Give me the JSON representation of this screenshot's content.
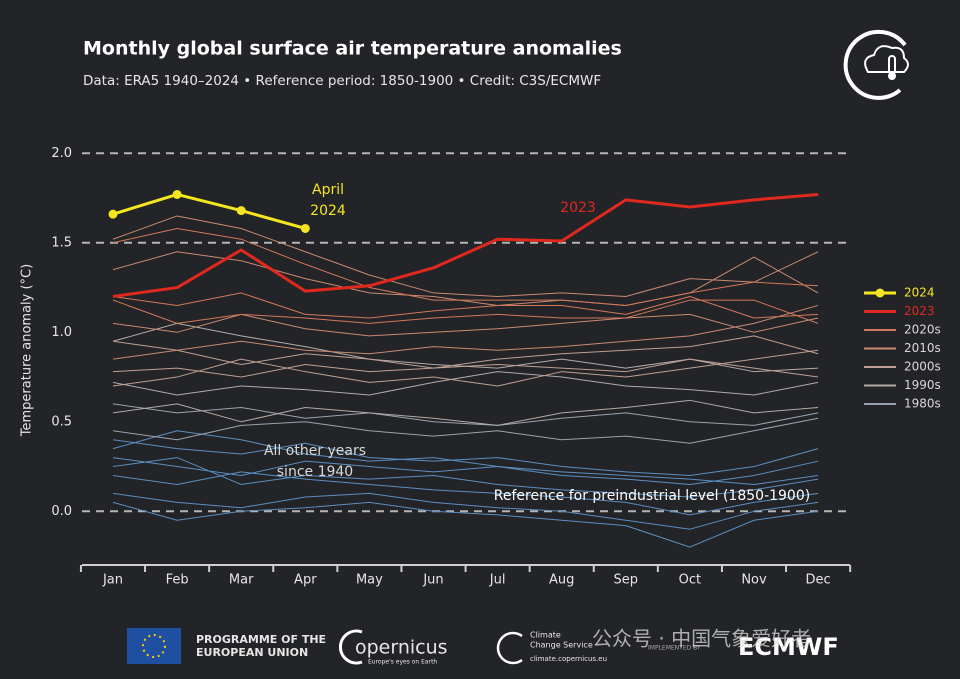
{
  "chart_data": {
    "type": "line",
    "title": "Monthly global surface air temperature anomalies",
    "subtitle": "Data: ERA5 1940–2024 • Reference period: 1850-1900 • Credit: C3S/ECMWF",
    "y_label": "Temperature anomaly (°C)",
    "categories": [
      "Jan",
      "Feb",
      "Mar",
      "Apr",
      "May",
      "Jun",
      "Jul",
      "Aug",
      "Sep",
      "Oct",
      "Nov",
      "Dec"
    ],
    "ylim": [
      -0.3,
      2.1
    ],
    "yticks": [
      {
        "value": 0,
        "label": "0.0"
      },
      0.5,
      {
        "value": 1,
        "label": "1.0"
      },
      1.5,
      {
        "value": 2,
        "label": "2.0"
      }
    ],
    "dashed_lines": [
      0,
      1.5,
      2
    ],
    "series": [
      {
        "name": "2024",
        "color": "#f5e61f",
        "values": [
          1.66,
          1.77,
          1.68,
          1.58,
          null,
          null,
          null,
          null,
          null,
          null,
          null,
          null
        ]
      },
      {
        "name": "2023",
        "color": "#e0281e",
        "values": [
          1.2,
          1.25,
          1.46,
          1.23,
          1.26,
          1.36,
          1.52,
          1.51,
          1.74,
          1.7,
          1.74,
          1.77
        ]
      }
    ],
    "decades": [
      {
        "name": "2020s",
        "color": "#d27858",
        "lines": [
          [
            1.5,
            1.58,
            1.52,
            1.38,
            1.25,
            1.18,
            1.18,
            1.18,
            1.15,
            1.22,
            1.28,
            1.26
          ],
          [
            1.18,
            1.05,
            1.1,
            1.08,
            1.05,
            1.08,
            1.1,
            1.08,
            1.08,
            1.18,
            1.18,
            1.05
          ],
          [
            1.2,
            1.15,
            1.22,
            1.1,
            1.08,
            1.12,
            1.15,
            1.15,
            1.1,
            1.2,
            1.08,
            1.1
          ]
        ]
      },
      {
        "name": "2010s",
        "color": "#c98a72",
        "lines": [
          [
            1.52,
            1.65,
            1.58,
            1.45,
            1.32,
            1.22,
            1.2,
            1.22,
            1.2,
            1.3,
            1.28,
            1.45
          ],
          [
            1.35,
            1.45,
            1.4,
            1.3,
            1.22,
            1.2,
            1.15,
            1.18,
            1.15,
            1.22,
            1.42,
            1.22
          ],
          [
            1.05,
            1.0,
            1.1,
            1.02,
            0.98,
            1.0,
            1.02,
            1.05,
            1.08,
            1.1,
            1.0,
            1.08
          ],
          [
            0.85,
            0.9,
            0.95,
            0.9,
            0.88,
            0.92,
            0.9,
            0.92,
            0.95,
            0.98,
            1.05,
            1.15
          ]
        ]
      },
      {
        "name": "2000s",
        "color": "#bfa092",
        "lines": [
          [
            0.95,
            0.9,
            0.82,
            0.88,
            0.85,
            0.8,
            0.85,
            0.88,
            0.9,
            0.92,
            0.98,
            0.88
          ],
          [
            0.78,
            0.8,
            0.75,
            0.82,
            0.78,
            0.8,
            0.82,
            0.8,
            0.78,
            0.85,
            0.8,
            0.75
          ],
          [
            0.7,
            0.75,
            0.85,
            0.78,
            0.72,
            0.75,
            0.7,
            0.78,
            0.75,
            0.8,
            0.85,
            0.9
          ]
        ]
      },
      {
        "name": "1990s",
        "color": "#b3aaa8",
        "lines": [
          [
            0.72,
            0.65,
            0.7,
            0.68,
            0.65,
            0.72,
            0.78,
            0.75,
            0.7,
            0.68,
            0.65,
            0.72
          ],
          [
            0.55,
            0.6,
            0.5,
            0.58,
            0.55,
            0.52,
            0.48,
            0.55,
            0.58,
            0.62,
            0.55,
            0.58
          ],
          [
            0.95,
            1.05,
            0.98,
            0.92,
            0.85,
            0.82,
            0.8,
            0.85,
            0.8,
            0.85,
            0.78,
            0.8
          ]
        ]
      },
      {
        "name": "1980s",
        "color": "#9aa3ae",
        "lines": [
          [
            0.45,
            0.4,
            0.48,
            0.5,
            0.45,
            0.42,
            0.45,
            0.4,
            0.42,
            0.38,
            0.45,
            0.52
          ],
          [
            0.6,
            0.55,
            0.58,
            0.52,
            0.55,
            0.5,
            0.48,
            0.52,
            0.55,
            0.5,
            0.48,
            0.55
          ]
        ]
      }
    ],
    "other_years": {
      "color": "#5b8fc2",
      "lines": [
        [
          0.3,
          0.25,
          0.2,
          0.28,
          0.25,
          0.22,
          0.25,
          0.2,
          0.18,
          0.15,
          0.2,
          0.28
        ],
        [
          0.2,
          0.15,
          0.22,
          0.18,
          0.15,
          0.12,
          0.1,
          0.08,
          0.05,
          -0.02,
          0.05,
          0.1
        ],
        [
          0.4,
          0.35,
          0.32,
          0.38,
          0.3,
          0.28,
          0.3,
          0.25,
          0.22,
          0.2,
          0.25,
          0.35
        ],
        [
          0.1,
          0.05,
          0.02,
          0.08,
          0.1,
          0.05,
          0.02,
          0.0,
          -0.05,
          -0.1,
          0.0,
          0.05
        ],
        [
          0.35,
          0.45,
          0.4,
          0.32,
          0.28,
          0.3,
          0.25,
          0.22,
          0.2,
          0.18,
          0.15,
          0.2
        ],
        [
          0.05,
          -0.05,
          0.0,
          0.02,
          0.05,
          0.0,
          -0.02,
          -0.05,
          -0.08,
          -0.2,
          -0.05,
          0.0
        ],
        [
          0.25,
          0.3,
          0.15,
          0.2,
          0.18,
          0.2,
          0.15,
          0.12,
          0.1,
          0.08,
          0.12,
          0.18
        ]
      ]
    },
    "annotations": [
      {
        "lines": [
          "April",
          "2024"
        ],
        "color": "#f5e61f"
      },
      {
        "lines": [
          "2023"
        ],
        "color": "#e0281e"
      },
      {
        "lines": [
          "All other years",
          "since 1940"
        ],
        "color": "#d8d8d8"
      },
      {
        "lines": [
          "Reference for preindustrial level (1850-1900)"
        ],
        "color": "#ffffff"
      }
    ]
  },
  "footer": {
    "eu": [
      "PROGRAMME OF THE",
      "EUROPEAN UNION"
    ],
    "copernicus": "opernicus",
    "copernicus_tag": "Europe's eyes on Earth",
    "c3s": [
      "Climate",
      "Change Service"
    ],
    "c3s_url": "climate.copernicus.eu",
    "implemented": "IMPLEMENTED BY",
    "ecmwf": "ECMWF",
    "watermark": "公众号 · 中国气象爱好者"
  }
}
